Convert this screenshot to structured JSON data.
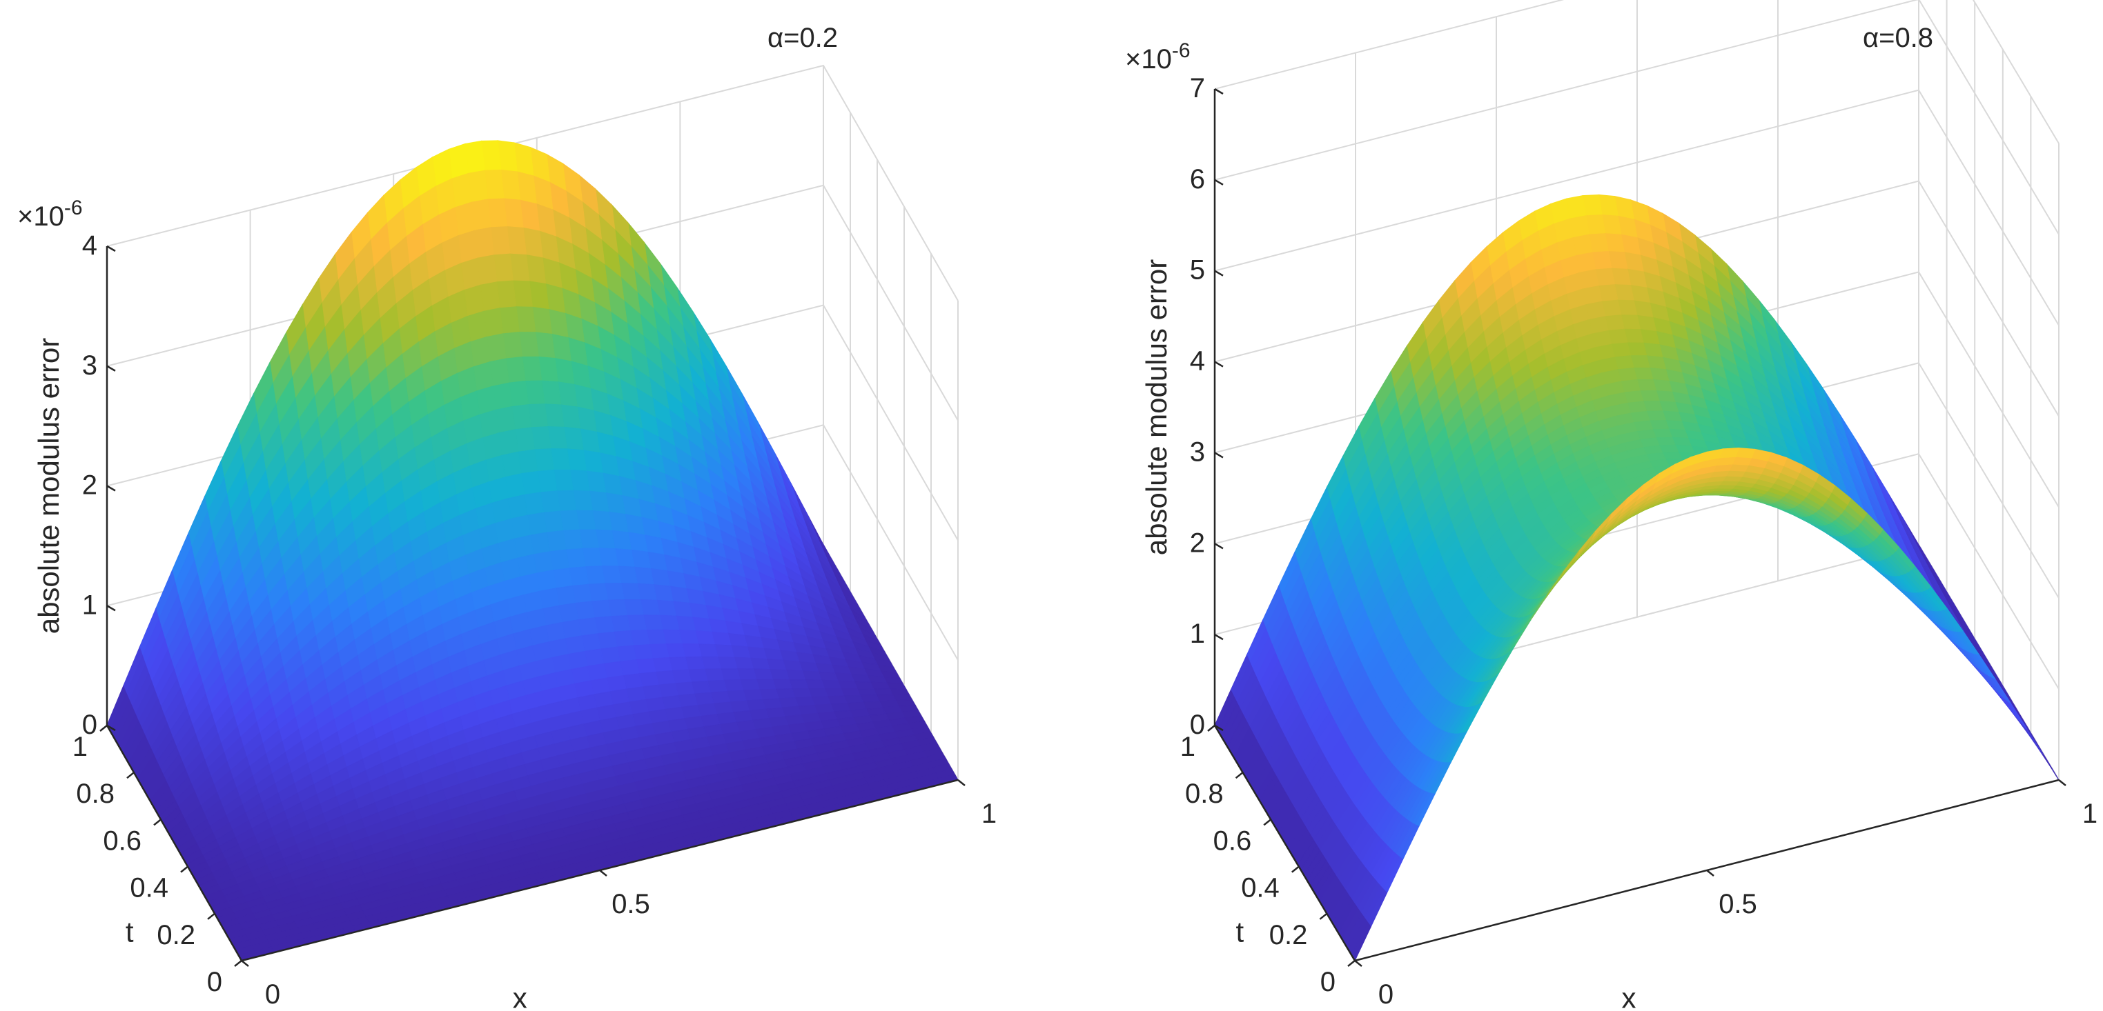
{
  "chart_data": [
    {
      "type": "surface",
      "title": "α=0.2",
      "xlabel": "x",
      "ylabel": "t",
      "zlabel": "absolute modulus error",
      "z_exponent": "×10-6",
      "xlim": [
        0,
        1
      ],
      "ylim": [
        0,
        1
      ],
      "zlim": [
        0,
        4
      ],
      "x_ticks": [
        "0",
        "0.5",
        "1"
      ],
      "y_ticks": [
        "0",
        "0.2",
        "0.4",
        "0.6",
        "0.8",
        "1"
      ],
      "z_ticks": [
        "0",
        "1",
        "2",
        "3",
        "4"
      ],
      "peak": {
        "x": 0.5,
        "t": 1,
        "z": 4.1
      },
      "grid": true,
      "colormap": "parula"
    },
    {
      "type": "surface",
      "title": "α=0.8",
      "xlabel": "x",
      "ylabel": "t",
      "zlabel": "absolute modulus error",
      "z_exponent": "×10-6",
      "xlim": [
        0,
        1
      ],
      "ylim": [
        0,
        1
      ],
      "zlim": [
        0,
        7
      ],
      "x_ticks": [
        "0",
        "0.5",
        "1"
      ],
      "y_ticks": [
        "0",
        "0.2",
        "0.4",
        "0.6",
        "0.8",
        "1"
      ],
      "z_ticks": [
        "0",
        "1",
        "2",
        "3",
        "4",
        "5",
        "6",
        "7"
      ],
      "peaks": [
        {
          "x": 0.5,
          "t": 1,
          "z": 4.8
        },
        {
          "x": 0.5,
          "t": 0,
          "z": 4.6
        }
      ],
      "grid": true,
      "colormap": "parula"
    }
  ]
}
